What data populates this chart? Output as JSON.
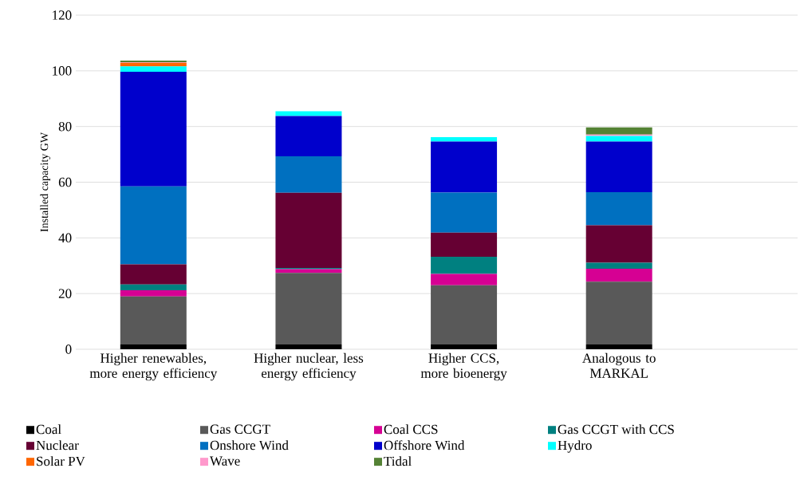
{
  "chart_data": {
    "type": "bar",
    "stacked": true,
    "ylabel": "Installed capacity GW",
    "categories": [
      "Higher renewables, more energy efficiency",
      "Higher nuclear, less energy efficiency",
      "Higher CCS, more bioenergy",
      "Analogous to MARKAL"
    ],
    "series": [
      {
        "name": "Coal",
        "color": "#000000",
        "values": [
          1.7,
          1.7,
          1.7,
          1.7
        ]
      },
      {
        "name": "Gas CCGT",
        "color": "#595959",
        "values": [
          17.3,
          25.7,
          21.3,
          22.6
        ]
      },
      {
        "name": "Coal CCS",
        "color": "#d60093",
        "values": [
          2.2,
          1.4,
          4.1,
          4.6
        ]
      },
      {
        "name": "Gas CCGT with CCS",
        "color": "#008080",
        "values": [
          2.1,
          0.4,
          6.1,
          2.2
        ]
      },
      {
        "name": "Nuclear",
        "color": "#660033",
        "values": [
          7.2,
          27.0,
          8.7,
          13.4
        ]
      },
      {
        "name": "Onshore Wind",
        "color": "#0070c0",
        "values": [
          28.0,
          13.1,
          14.4,
          11.9
        ]
      },
      {
        "name": "Offshore Wind",
        "color": "#0000cc",
        "values": [
          41.2,
          14.5,
          18.3,
          18.2
        ]
      },
      {
        "name": "Hydro",
        "color": "#00ffff",
        "values": [
          1.9,
          1.7,
          1.6,
          2.0
        ]
      },
      {
        "name": "Solar PV",
        "color": "#ff6600",
        "values": [
          1.3,
          0,
          0,
          0
        ]
      },
      {
        "name": "Wave",
        "color": "#ff99cc",
        "values": [
          0.2,
          0,
          0,
          0.5
        ]
      },
      {
        "name": "Tidal",
        "color": "#548235",
        "values": [
          0.6,
          0,
          0,
          2.6
        ]
      }
    ],
    "ylim": [
      0,
      120
    ],
    "yticks": [
      0,
      20,
      40,
      60,
      80,
      100,
      120
    ],
    "grid": "y",
    "legend": "bottom"
  }
}
